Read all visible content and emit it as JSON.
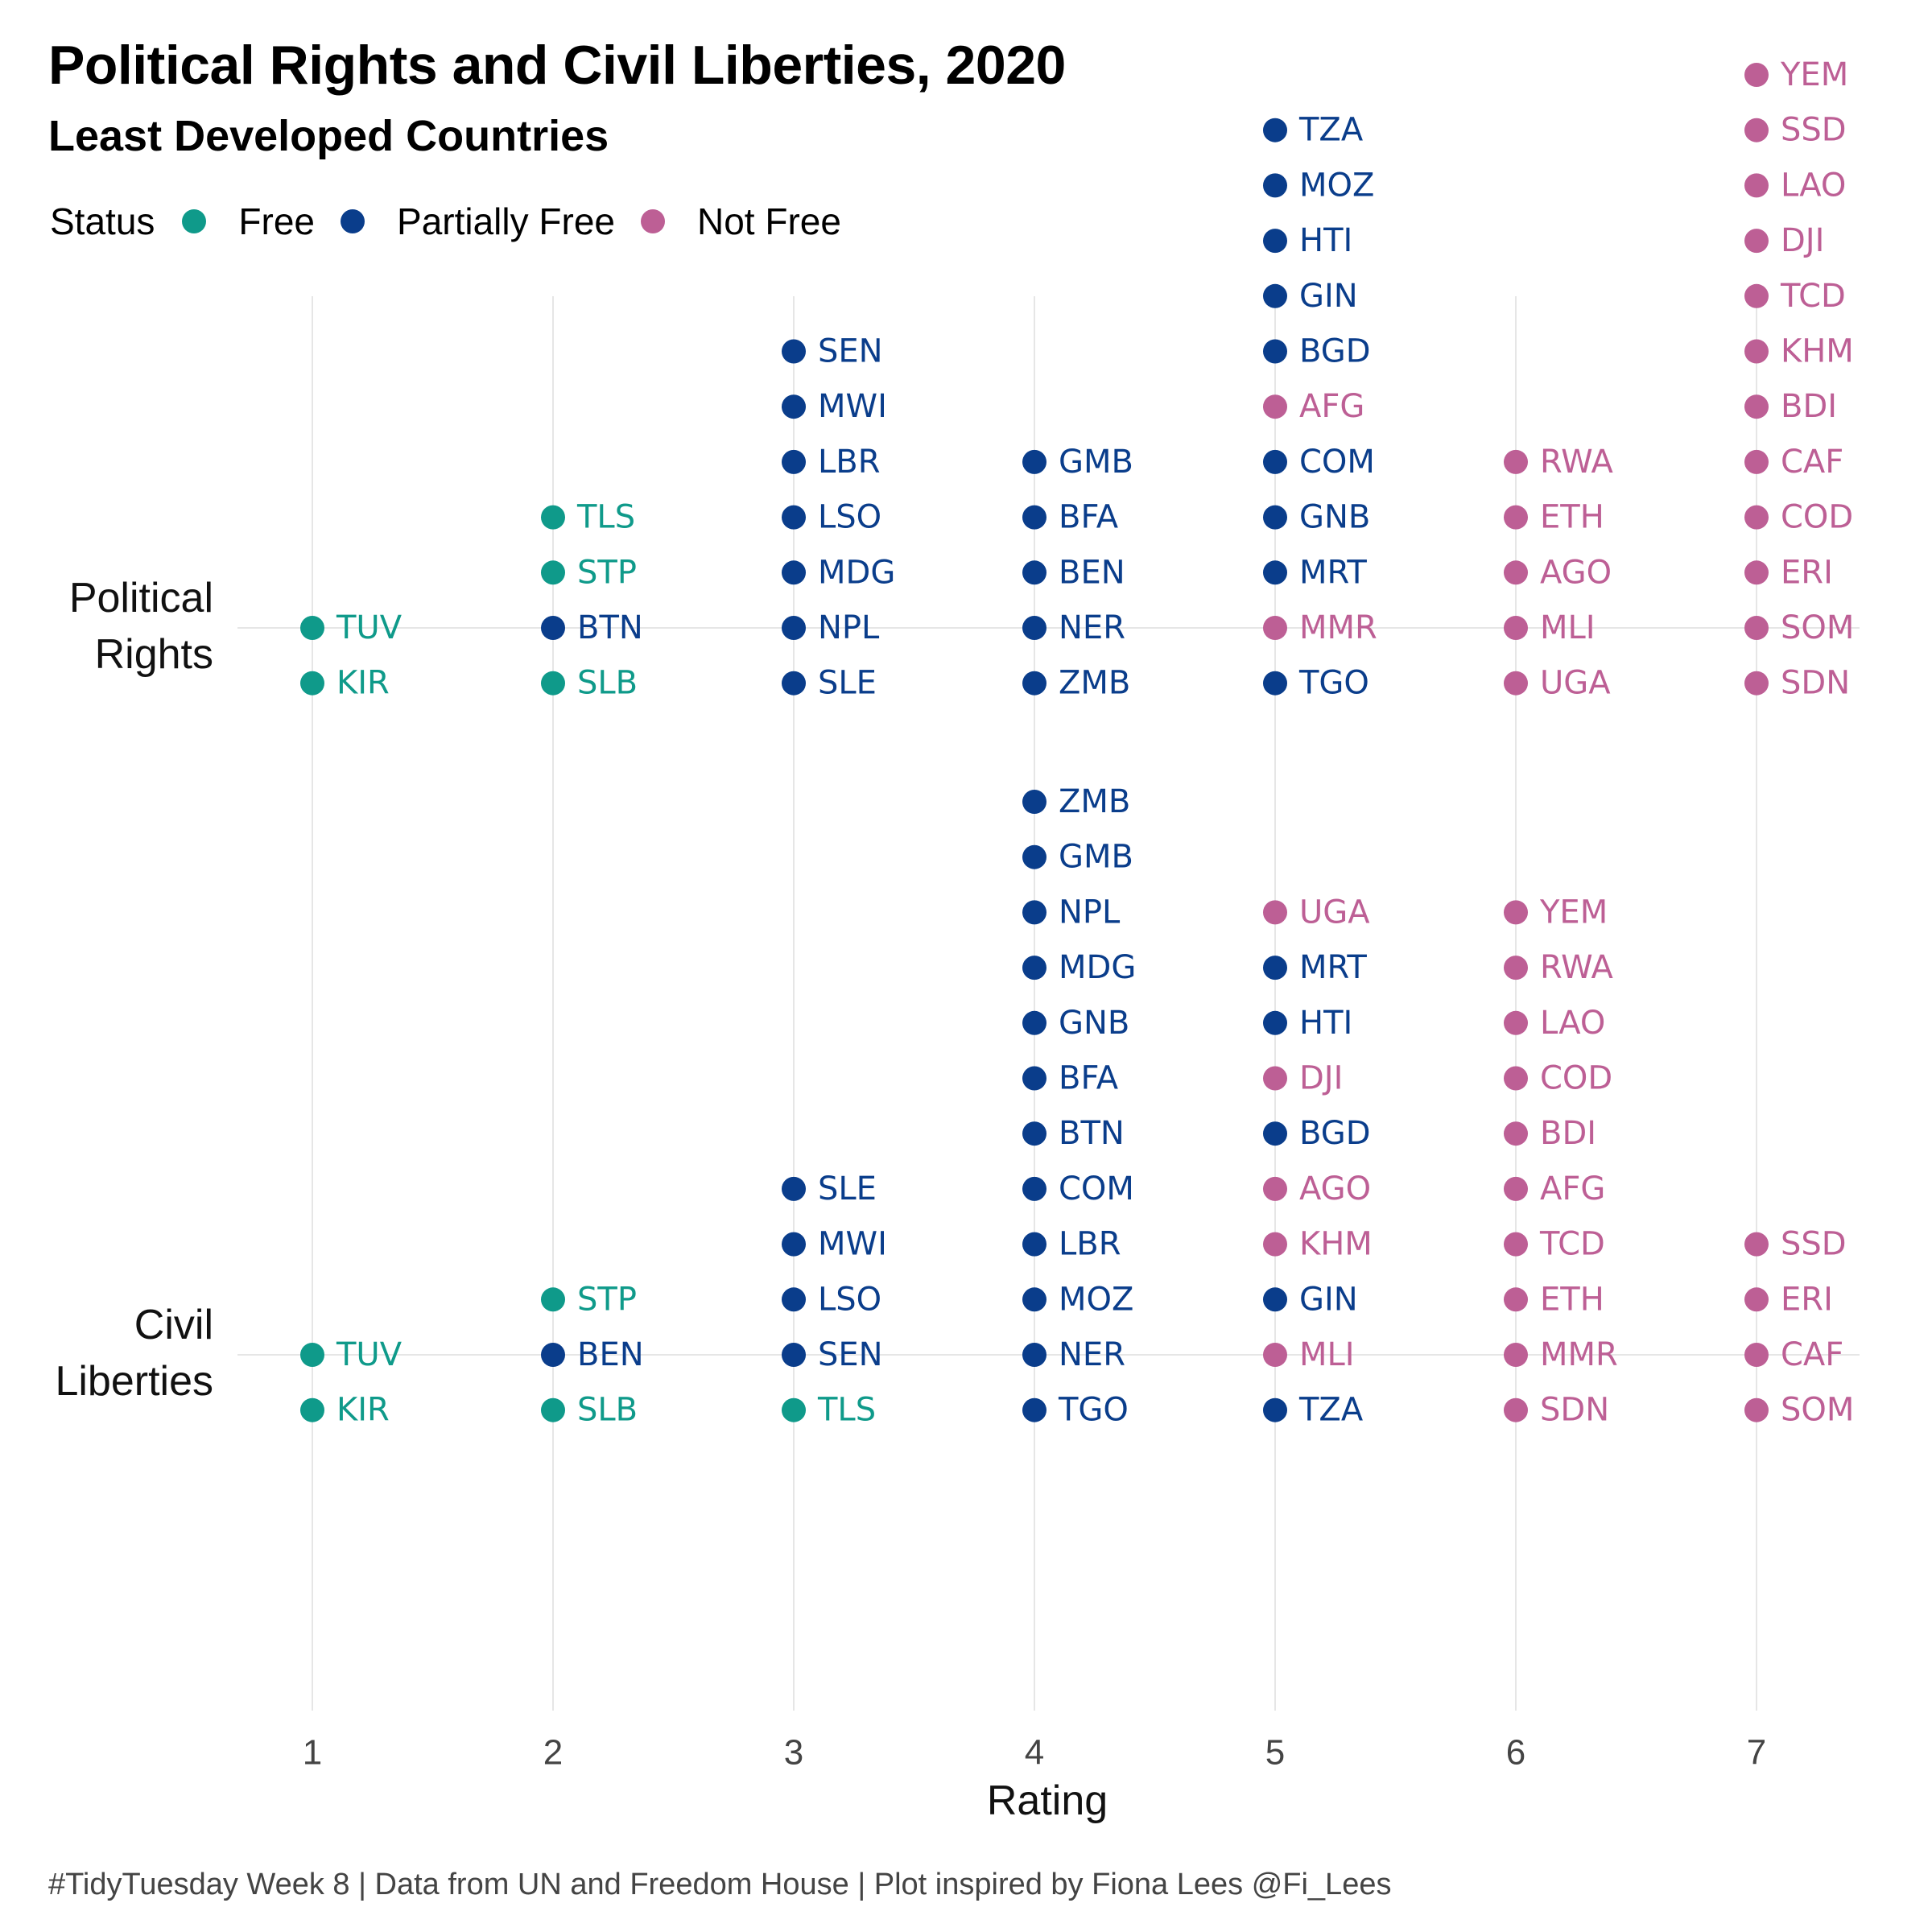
{
  "title": "Political Rights and Civil Liberties, 2020",
  "subtitle": "Least Developed Countries",
  "caption": "#TidyTuesday Week 8 | Data from UN and Freedom House | Plot inspired by Fiona Lees @Fi_Lees",
  "legend": {
    "title": "Status",
    "items": [
      {
        "label": "Free",
        "color": "#0f9a8a"
      },
      {
        "label": "Partially Free",
        "color": "#0a3d8b"
      },
      {
        "label": "Not Free",
        "color": "#bd5f95"
      }
    ]
  },
  "chart_data": {
    "type": "scatter",
    "xlabel": "Rating",
    "x_ticks": [
      1,
      2,
      3,
      4,
      5,
      6,
      7
    ],
    "xlim": [
      1,
      7
    ],
    "rows": [
      "Political Rights",
      "Civil Liberties"
    ],
    "row_labels": [
      [
        "Political",
        "Rights"
      ],
      [
        "Civil",
        "Liberties"
      ]
    ],
    "grid": true,
    "legend_position": "top-left",
    "status_colors": {
      "Free": "#0f9a8a",
      "Partially Free": "#0a3d8b",
      "Not Free": "#bd5f95"
    },
    "series": [
      {
        "row": "Political Rights",
        "stacks": [
          {
            "rating": 1,
            "points": [
              {
                "code": "TUV",
                "status": "Free"
              },
              {
                "code": "KIR",
                "status": "Free"
              }
            ]
          },
          {
            "rating": 2,
            "points": [
              {
                "code": "TLS",
                "status": "Free"
              },
              {
                "code": "STP",
                "status": "Free"
              },
              {
                "code": "BTN",
                "status": "Partially Free"
              },
              {
                "code": "SLB",
                "status": "Free"
              }
            ]
          },
          {
            "rating": 3,
            "points": [
              {
                "code": "SEN",
                "status": "Partially Free"
              },
              {
                "code": "MWI",
                "status": "Partially Free"
              },
              {
                "code": "LBR",
                "status": "Partially Free"
              },
              {
                "code": "LSO",
                "status": "Partially Free"
              },
              {
                "code": "MDG",
                "status": "Partially Free"
              },
              {
                "code": "NPL",
                "status": "Partially Free"
              },
              {
                "code": "SLE",
                "status": "Partially Free"
              }
            ]
          },
          {
            "rating": 4,
            "points": [
              {
                "code": "GMB",
                "status": "Partially Free"
              },
              {
                "code": "BFA",
                "status": "Partially Free"
              },
              {
                "code": "BEN",
                "status": "Partially Free"
              },
              {
                "code": "NER",
                "status": "Partially Free"
              },
              {
                "code": "ZMB",
                "status": "Partially Free"
              }
            ]
          },
          {
            "rating": 5,
            "points": [
              {
                "code": "TZA",
                "status": "Partially Free"
              },
              {
                "code": "MOZ",
                "status": "Partially Free"
              },
              {
                "code": "HTI",
                "status": "Partially Free"
              },
              {
                "code": "GIN",
                "status": "Partially Free"
              },
              {
                "code": "BGD",
                "status": "Partially Free"
              },
              {
                "code": "AFG",
                "status": "Not Free"
              },
              {
                "code": "COM",
                "status": "Partially Free"
              },
              {
                "code": "GNB",
                "status": "Partially Free"
              },
              {
                "code": "MRT",
                "status": "Partially Free"
              },
              {
                "code": "MMR",
                "status": "Not Free"
              },
              {
                "code": "TGO",
                "status": "Partially Free"
              }
            ]
          },
          {
            "rating": 6,
            "points": [
              {
                "code": "RWA",
                "status": "Not Free"
              },
              {
                "code": "ETH",
                "status": "Not Free"
              },
              {
                "code": "AGO",
                "status": "Not Free"
              },
              {
                "code": "MLI",
                "status": "Not Free"
              },
              {
                "code": "UGA",
                "status": "Not Free"
              }
            ]
          },
          {
            "rating": 7,
            "points": [
              {
                "code": "YEM",
                "status": "Not Free"
              },
              {
                "code": "SSD",
                "status": "Not Free"
              },
              {
                "code": "LAO",
                "status": "Not Free"
              },
              {
                "code": "DJI",
                "status": "Not Free"
              },
              {
                "code": "TCD",
                "status": "Not Free"
              },
              {
                "code": "KHM",
                "status": "Not Free"
              },
              {
                "code": "BDI",
                "status": "Not Free"
              },
              {
                "code": "CAF",
                "status": "Not Free"
              },
              {
                "code": "COD",
                "status": "Not Free"
              },
              {
                "code": "ERI",
                "status": "Not Free"
              },
              {
                "code": "SOM",
                "status": "Not Free"
              },
              {
                "code": "SDN",
                "status": "Not Free"
              }
            ]
          }
        ]
      },
      {
        "row": "Civil Liberties",
        "stacks": [
          {
            "rating": 1,
            "points": [
              {
                "code": "TUV",
                "status": "Free"
              },
              {
                "code": "KIR",
                "status": "Free"
              }
            ]
          },
          {
            "rating": 2,
            "points": [
              {
                "code": "STP",
                "status": "Free"
              },
              {
                "code": "BEN",
                "status": "Partially Free"
              },
              {
                "code": "SLB",
                "status": "Free"
              }
            ]
          },
          {
            "rating": 3,
            "points": [
              {
                "code": "SLE",
                "status": "Partially Free"
              },
              {
                "code": "MWI",
                "status": "Partially Free"
              },
              {
                "code": "LSO",
                "status": "Partially Free"
              },
              {
                "code": "SEN",
                "status": "Partially Free"
              },
              {
                "code": "TLS",
                "status": "Free"
              }
            ]
          },
          {
            "rating": 4,
            "points": [
              {
                "code": "ZMB",
                "status": "Partially Free"
              },
              {
                "code": "GMB",
                "status": "Partially Free"
              },
              {
                "code": "NPL",
                "status": "Partially Free"
              },
              {
                "code": "MDG",
                "status": "Partially Free"
              },
              {
                "code": "GNB",
                "status": "Partially Free"
              },
              {
                "code": "BFA",
                "status": "Partially Free"
              },
              {
                "code": "BTN",
                "status": "Partially Free"
              },
              {
                "code": "COM",
                "status": "Partially Free"
              },
              {
                "code": "LBR",
                "status": "Partially Free"
              },
              {
                "code": "MOZ",
                "status": "Partially Free"
              },
              {
                "code": "NER",
                "status": "Partially Free"
              },
              {
                "code": "TGO",
                "status": "Partially Free"
              }
            ]
          },
          {
            "rating": 5,
            "points": [
              {
                "code": "UGA",
                "status": "Not Free"
              },
              {
                "code": "MRT",
                "status": "Partially Free"
              },
              {
                "code": "HTI",
                "status": "Partially Free"
              },
              {
                "code": "DJI",
                "status": "Not Free"
              },
              {
                "code": "BGD",
                "status": "Partially Free"
              },
              {
                "code": "AGO",
                "status": "Not Free"
              },
              {
                "code": "KHM",
                "status": "Not Free"
              },
              {
                "code": "GIN",
                "status": "Partially Free"
              },
              {
                "code": "MLI",
                "status": "Not Free"
              },
              {
                "code": "TZA",
                "status": "Partially Free"
              }
            ]
          },
          {
            "rating": 6,
            "points": [
              {
                "code": "YEM",
                "status": "Not Free"
              },
              {
                "code": "RWA",
                "status": "Not Free"
              },
              {
                "code": "LAO",
                "status": "Not Free"
              },
              {
                "code": "COD",
                "status": "Not Free"
              },
              {
                "code": "BDI",
                "status": "Not Free"
              },
              {
                "code": "AFG",
                "status": "Not Free"
              },
              {
                "code": "TCD",
                "status": "Not Free"
              },
              {
                "code": "ETH",
                "status": "Not Free"
              },
              {
                "code": "MMR",
                "status": "Not Free"
              },
              {
                "code": "SDN",
                "status": "Not Free"
              }
            ]
          },
          {
            "rating": 7,
            "points": [
              {
                "code": "SSD",
                "status": "Not Free"
              },
              {
                "code": "ERI",
                "status": "Not Free"
              },
              {
                "code": "CAF",
                "status": "Not Free"
              },
              {
                "code": "SOM",
                "status": "Not Free"
              }
            ]
          }
        ]
      }
    ]
  }
}
